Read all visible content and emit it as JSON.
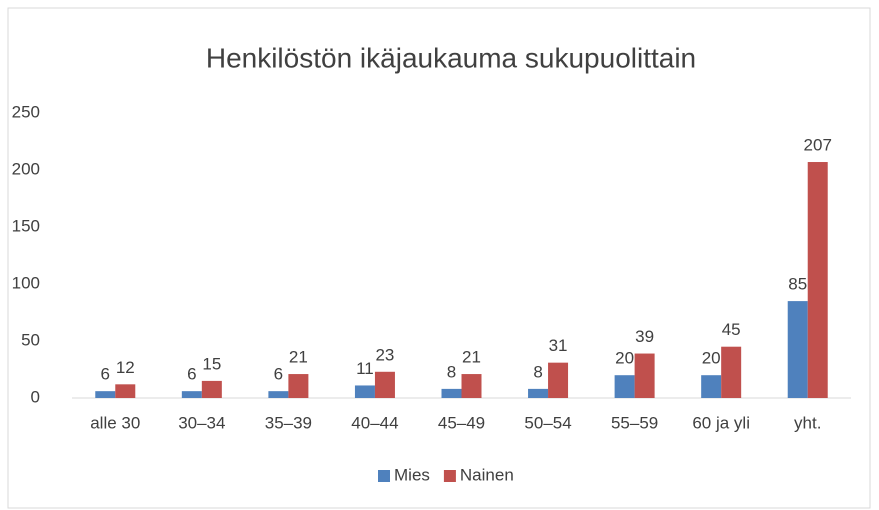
{
  "chart_data": {
    "type": "bar",
    "title": "Henkilöstön ikäjaukauma sukupuolittain",
    "categories": [
      "alle 30",
      "30–34",
      "35–39",
      "40–44",
      "45–49",
      "50–54",
      "55–59",
      "60 ja yli",
      "yht."
    ],
    "series": [
      {
        "name": "Mies",
        "color": "#4f81bd",
        "values": [
          6,
          6,
          6,
          11,
          8,
          8,
          20,
          20,
          85
        ]
      },
      {
        "name": "Nainen",
        "color": "#c0504d",
        "values": [
          12,
          15,
          21,
          23,
          21,
          31,
          39,
          45,
          207
        ]
      }
    ],
    "ylim": [
      0,
      250
    ],
    "yticks": [
      0,
      50,
      100,
      150,
      200,
      250
    ],
    "grid": false,
    "legend": "bottom"
  }
}
